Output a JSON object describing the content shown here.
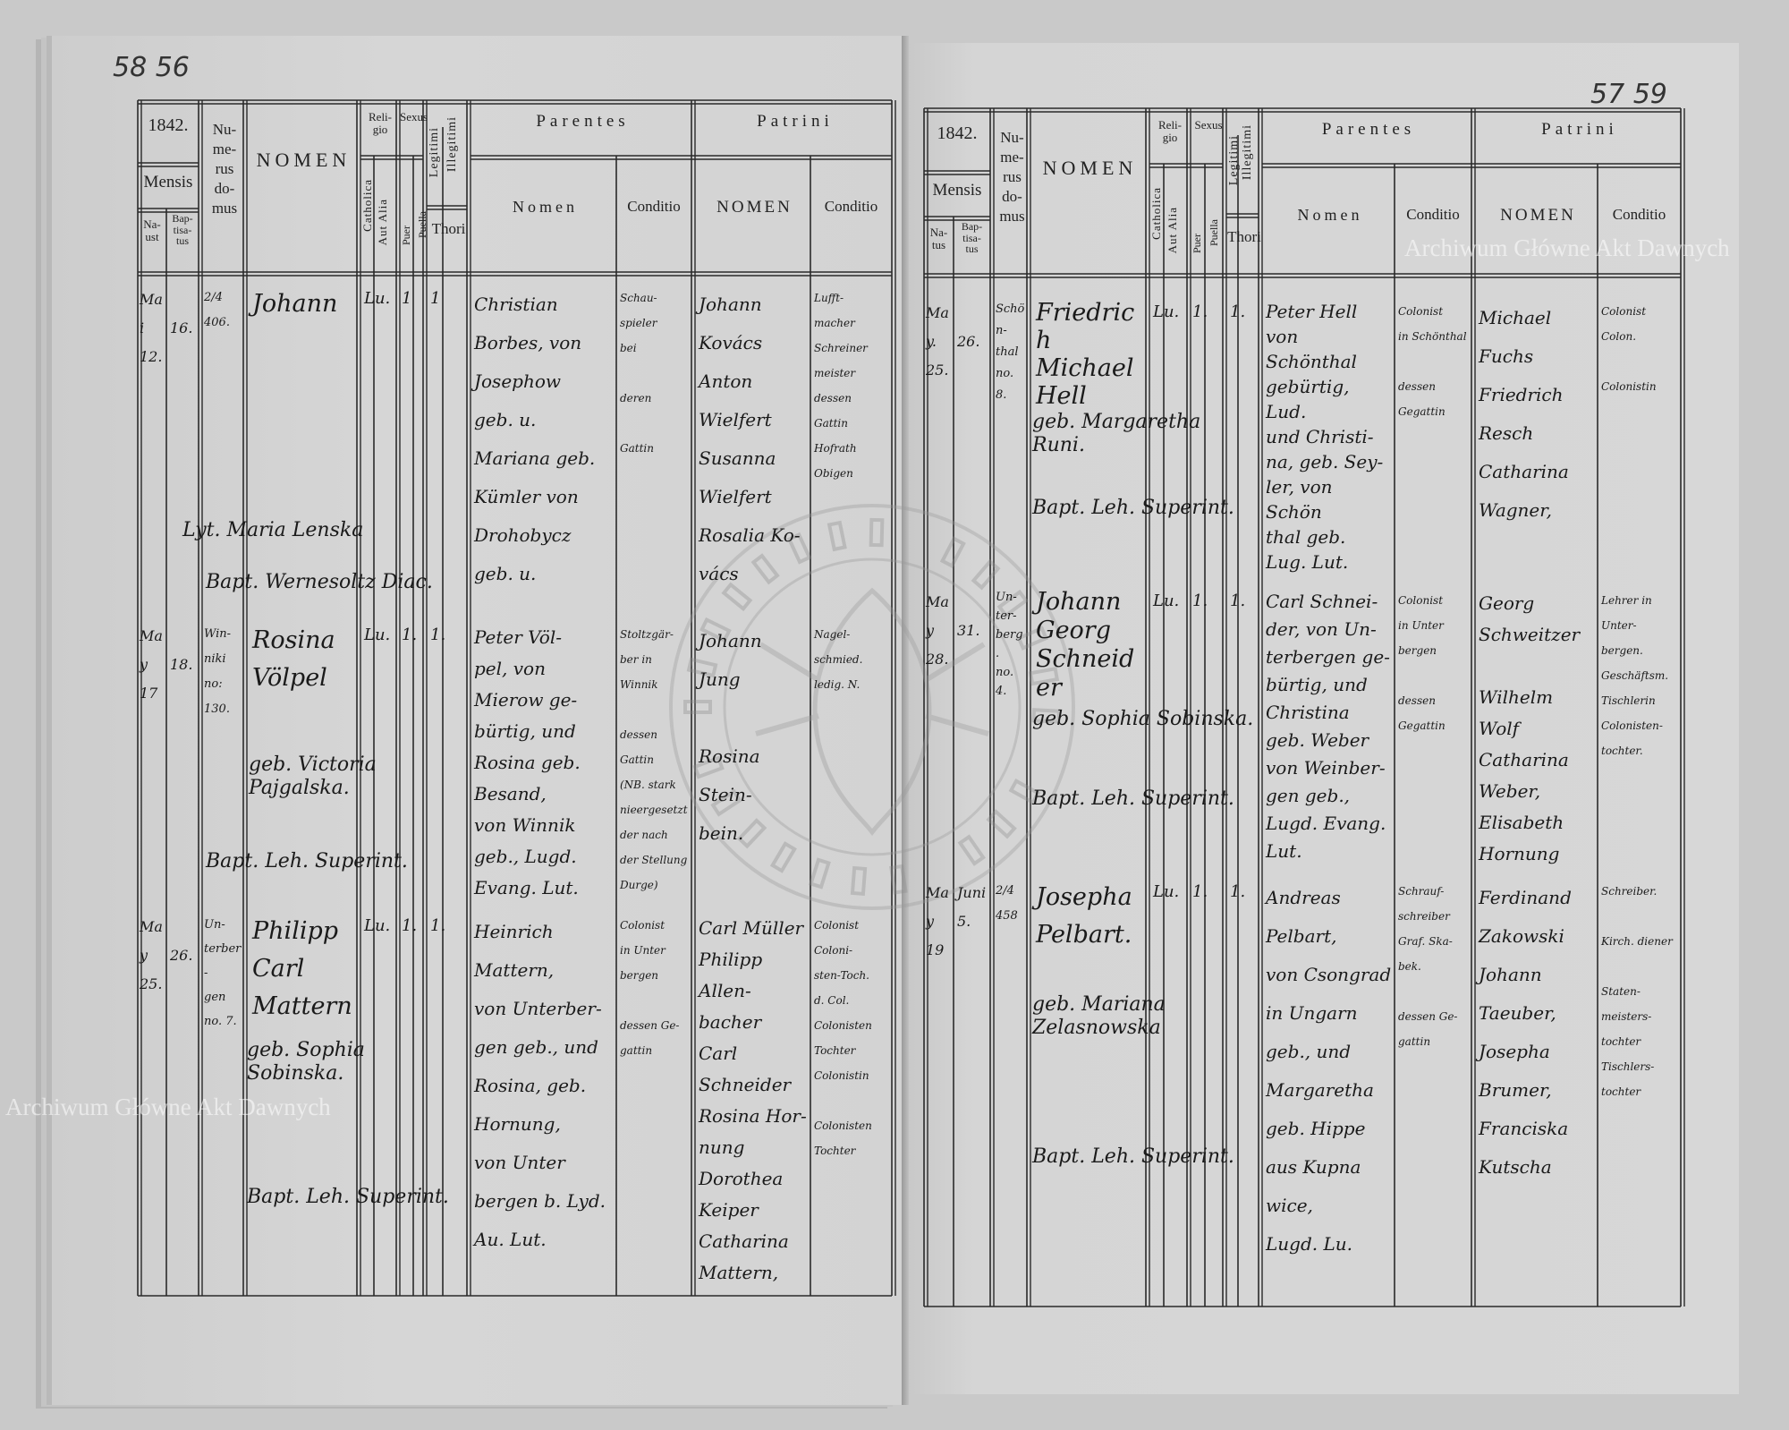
{
  "page_numbers": {
    "left": "58 56",
    "right": "57 59"
  },
  "watermark": {
    "text": "Archiwum Główne Akt Dawnych",
    "seal_text": "ARCHIWUM GŁÓWNE AKT DAWNYCH"
  },
  "header": {
    "year": "1842.",
    "mensis": "Mensis",
    "natus": "Na-\ntus",
    "natus_left": "Na-\nust",
    "baptisatus": "Bap-\ntisa-\ntus",
    "numerus_domus": "Nu-\nme-\nrus\ndo-\nmus",
    "nomen": "NOMEN",
    "religio": "Reli-\ngio",
    "catholica": "Catholica",
    "aut_alia": "Aut Alia",
    "sexus": "Sexus",
    "puer": "Puer",
    "puella": "Puella",
    "legitimi": "Legitimi",
    "illegitimi": "Illegitimi",
    "thori": "Thori",
    "parentes": "Parentes",
    "parentes_nomen": "Nomen",
    "conditio": "Conditio",
    "patrini": "Patrini",
    "patrini_nomen": "NOMEN"
  },
  "left_page": {
    "entries": [
      {
        "natus": "Mai\n12.",
        "baptisatus": "\n16.",
        "numerus": "2/4\n406.",
        "nomen": "Johann",
        "religio": "Lu.",
        "sexus": "1",
        "legitimi": "1",
        "parentes_nomen": "Christian\nBorbes, von\nJosephow\ngeb. u.\nMariana geb.\nKümler von\nDrohobycz\ngeb. u.",
        "parentes_conditio": "Schau-\nspieler\nbei\n\nderen\n\nGattin",
        "patrini_nomen": "Johann\nKovács\nAnton\nWielfert\nSusanna\nWielfert\nRosalia Ko-\nvács",
        "patrini_conditio": "Lufft-\nmacher\nSchreiner\nmeister\ndessen\nGattin\nHofrath\nObigen",
        "mother": "Lyt. Maria Lenska",
        "bapt": "Bapt. Wernesoltz Diac."
      },
      {
        "natus": "May\n17",
        "baptisatus": "\n18.",
        "numerus": "Win-\nniki\nno:\n130.",
        "nomen": "Rosina\nVölpel",
        "religio": "Lu.",
        "sexus": "1.",
        "legitimi": "1.",
        "parentes_nomen": "Peter Völ-\npel, von\nMierow ge-\nbürtig, und\nRosina geb.\nBesand,\nvon Winnik\ngeb., Lugd.\nEvang. Lut.",
        "parentes_conditio": "Stoltzgär-\nber in\nWinnik\n\ndessen\nGattin\n(NB. stark\nnieergesetzt\nder nach\nder Stellung\nDurge)",
        "patrini_nomen": "Johann Jung\n\nRosina Stein-\nbein.",
        "patrini_conditio": "Nagel-\nschmied.\nledig. N.",
        "mother": "geb. Victoria Pajgalska.",
        "bapt": "Bapt. Leh. Superint."
      },
      {
        "natus": "May\n25.",
        "baptisatus": "\n26.",
        "numerus": "Un-\nterber-\ngen\nno. 7.",
        "nomen": "Philipp\nCarl\nMattern",
        "religio": "Lu.",
        "sexus": "1.",
        "legitimi": "1.",
        "parentes_nomen": "Heinrich\nMattern,\nvon Unterber-\ngen geb., und\nRosina, geb.\nHornung,\nvon Unter\nbergen b. Lyd.\nAu. Lut.",
        "parentes_conditio": "Colonist\nin Unter\nbergen\n\ndessen Ge-\ngattin",
        "patrini_nomen": "Carl Müller\nPhilipp Allen-\nbacher\nCarl Schneider\nRosina Hor-\nnung\nDorothea\nKeiper\nCatharina\nMattern,",
        "patrini_conditio": "Colonist\nColoni-\nsten-Toch.\nd. Col.\nColonisten\nTochter\nColonistin\n\nColonisten\nTochter",
        "mother": "geb. Sophia Sobinska.",
        "bapt": "Bapt. Leh. Superint."
      }
    ]
  },
  "right_page": {
    "entries": [
      {
        "natus": "May.\n25.",
        "baptisatus": "\n26.",
        "numerus": "Schön-\nthal\nno.\n8.",
        "nomen": "Friedrich\nMichael\nHell",
        "religio": "Lu.",
        "sexus": "1.",
        "legitimi": "1.",
        "parentes_nomen": "Peter Hell\nvon Schönthal\ngebürtig, Lud.\nund Christi-\nna, geb. Sey-\nler, von Schön\nthal geb.\nLug. Lut.",
        "parentes_conditio": "Colonist\nin Schönthal\n\ndessen\nGegattin",
        "patrini_nomen": "Michael Fuchs\nFriedrich Resch\nCatharina\nWagner,",
        "patrini_conditio": "Colonist\nColon.\n\nColonistin",
        "mother": "geb. Margaretha Runi.",
        "bapt": "Bapt. Leh. Superint."
      },
      {
        "natus": "May\n28.",
        "baptisatus": "\n31.",
        "numerus": "Un-\nter-\nberg.\nno.\n4.",
        "nomen": "Johann\nGeorg\nSchneider",
        "religio": "Lu.",
        "sexus": "1.",
        "legitimi": "1.",
        "parentes_nomen": "Carl Schnei-\nder, von Un-\nterbergen ge-\nbürtig, und\nChristina\ngeb. Weber\nvon Weinber-\ngen geb.,\nLugd. Evang.\nLut.",
        "parentes_conditio": "Colonist\nin Unter\nbergen\n\ndessen\nGegattin",
        "patrini_nomen": "Georg Schweitzer\n\nWilhelm Wolf\nCatharina\nWeber,\nElisabeth\nHornung",
        "patrini_conditio": "Lehrer in Unter-\nbergen.\nGeschäftsm.\nTischlerin\nColonisten-\ntochter.",
        "mother": "geb. Sophia Sobinska.",
        "bapt": "Bapt. Leh. Superint."
      },
      {
        "natus": "May\n19",
        "baptisatus": "Juni\n5.",
        "numerus": "2/4\n458",
        "nomen": "Josepha\nPelbart.",
        "religio": "Lu.",
        "sexus": "1.",
        "legitimi": "1.",
        "parentes_nomen": "Andreas\nPelbart,\nvon Csongrad\nin Ungarn\ngeb., und\nMargaretha\ngeb. Hippe\naus Kupna\nwice,\nLugd. Lu.",
        "parentes_conditio": "Schrauf-\nschreiber\nGraf. Ska-\nbek.\n\ndessen Ge-\ngattin",
        "patrini_nomen": "Ferdinand\nZakowski\nJohann\nTaeuber,\nJosepha\nBrumer,\nFranciska\nKutscha",
        "patrini_conditio": "Schreiber.\n\nKirch. diener\n\nStaten-\nmeisters-\ntochter\nTischlers-\ntochter",
        "mother": "geb. Mariana Zelasnowska",
        "bapt": "Bapt. Leh. Superint."
      }
    ]
  }
}
